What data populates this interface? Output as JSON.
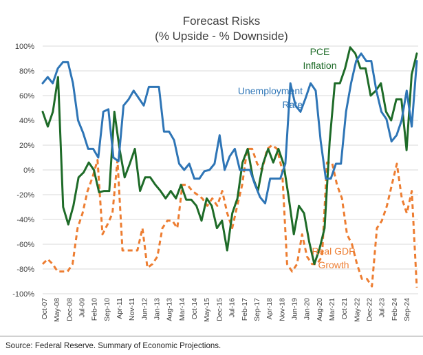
{
  "chart_data": {
    "type": "line",
    "title": "Forecast Risks",
    "subtitle": "(% Upside - % Downside)",
    "ylim": [
      -100,
      100
    ],
    "y_ticks": [
      100,
      80,
      60,
      40,
      20,
      0,
      -20,
      -40,
      -60,
      -80,
      -100
    ],
    "y_tick_labels": [
      "100%",
      "80%",
      "60%",
      "40%",
      "20%",
      "0%",
      "-20%",
      "-40%",
      "-60%",
      "-80%",
      "-100%"
    ],
    "x_tick_labels": [
      "Oct-07",
      "May-08",
      "Dec-08",
      "Jul-09",
      "Feb-10",
      "Sep-10",
      "Apr-11",
      "Nov-11",
      "Jun-12",
      "Jan-13",
      "Aug-13",
      "Mar-14",
      "Oct-14",
      "May-15",
      "Dec-15",
      "Jul-16",
      "Feb-17",
      "Sep-17",
      "Apr-18",
      "Nov-18",
      "Jun-19",
      "Jan-20",
      "Aug-20",
      "Mar-21",
      "Oct-21",
      "May-22",
      "Dec-22",
      "Jul-23",
      "Feb-24",
      "Sep-24"
    ],
    "series": [
      {
        "name": "Unemployment Rate",
        "label_lines": [
          "Unemployment",
          "Rate"
        ],
        "color": "#2e75b6",
        "style": "solid",
        "values": [
          70,
          75,
          70,
          82,
          87,
          87,
          70,
          40,
          30,
          17,
          17,
          10,
          47,
          49,
          10,
          7,
          52,
          57,
          64,
          58,
          52,
          67,
          67,
          67,
          31,
          31,
          24,
          5,
          0,
          5,
          -7,
          -7,
          -1,
          0,
          5,
          28,
          0,
          11,
          17,
          0,
          0,
          0,
          -12,
          -22,
          -27,
          -7,
          -7,
          -7,
          5,
          70,
          52,
          47,
          58,
          70,
          64,
          23,
          -7,
          -7,
          5,
          5,
          47,
          70,
          88,
          94,
          88,
          88,
          64,
          47,
          41,
          23,
          28,
          40,
          64,
          35,
          88
        ]
      },
      {
        "name": "PCE Inflation",
        "label_lines": [
          "PCE",
          "Inflation"
        ],
        "color": "#1e6b28",
        "style": "solid",
        "values": [
          47,
          35,
          47,
          75,
          -30,
          -44,
          -29,
          -6,
          -2,
          6,
          0,
          -18,
          -17,
          -17,
          47,
          17,
          -6,
          5,
          17,
          -17,
          -6,
          -6,
          -12,
          -17,
          -23,
          -17,
          -23,
          -12,
          -24,
          -24,
          -29,
          -41,
          -23,
          -29,
          -47,
          -41,
          -65,
          -35,
          -23,
          6,
          17,
          -6,
          -17,
          5,
          17,
          6,
          17,
          5,
          -22,
          -52,
          -29,
          -35,
          -58,
          -76,
          -64,
          -47,
          23,
          70,
          70,
          82,
          99,
          94,
          82,
          82,
          60,
          64,
          70,
          47,
          40,
          57,
          57,
          16,
          77,
          94
        ]
      },
      {
        "name": "Real GDP Growth",
        "label_lines": [
          "Real GDP",
          "Growth"
        ],
        "color": "#ed7d31",
        "style": "dashed",
        "values": [
          -76,
          -72,
          -76,
          -82,
          -82,
          -82,
          -76,
          -47,
          -35,
          -17,
          -6,
          8,
          -52,
          -44,
          -35,
          8,
          -65,
          -65,
          -65,
          -65,
          -47,
          -79,
          -76,
          -70,
          -47,
          -41,
          -41,
          -47,
          -12,
          -12,
          -17,
          -20,
          -23,
          -29,
          -23,
          -29,
          -17,
          -35,
          -47,
          -29,
          -12,
          17,
          17,
          5,
          0,
          17,
          20,
          17,
          0,
          -76,
          -82,
          -76,
          -52,
          -70,
          -76,
          -76,
          -70,
          6,
          6,
          -12,
          -23,
          -52,
          -60,
          -76,
          -88,
          -88,
          -94,
          -47,
          -41,
          -29,
          -12,
          5,
          -23,
          -35,
          -17,
          -95
        ]
      }
    ]
  },
  "source": "Source: Federal Reserve. Summary of Economic Projections."
}
